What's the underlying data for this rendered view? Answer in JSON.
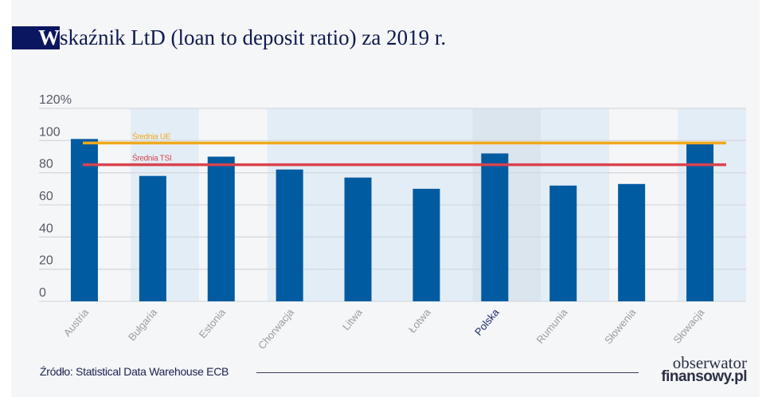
{
  "title": {
    "first_letter": "W",
    "rest": "skaźnik LtD (loan to deposit ratio) za 2019 r."
  },
  "chart_data": {
    "type": "bar",
    "title": "Wskaźnik LtD (loan to deposit ratio) za 2019 r.",
    "categories": [
      "Austria",
      "Bułgaria",
      "Estonia",
      "Chorwacja",
      "Litwa",
      "Łotwa",
      "Polska",
      "Rumunia",
      "Słowenia",
      "Słowacja"
    ],
    "values": [
      101,
      78,
      90,
      82,
      77,
      70,
      92,
      72,
      73,
      98
    ],
    "highlight_category": "Polska",
    "ylim": [
      0,
      120
    ],
    "yticks": [
      "0",
      "20",
      "40",
      "60",
      "80",
      "100",
      "120%"
    ],
    "ytick_values": [
      0,
      20,
      40,
      60,
      80,
      100,
      120
    ],
    "grid": true,
    "shaded_columns": [
      "Bułgaria",
      "Chorwacja",
      "Litwa",
      "Łotwa",
      "Polska",
      "Rumunia",
      "Słowacja"
    ],
    "reference_lines": [
      {
        "label": "Średnia UE",
        "value": 98.5,
        "color": "#f0a91c"
      },
      {
        "label": "Średnia TSI",
        "value": 85,
        "color": "#d9434e"
      }
    ],
    "colors": {
      "bar": "#005ba1",
      "grid": "#d6d9de",
      "shade": "#e3edf6",
      "shade_highlight": "#dbe5ee",
      "tick_label": "#9a9ca3",
      "highlight_label": "#1b2a6b"
    }
  },
  "footer": {
    "source": "Źródło: Statistical Data Warehouse ECB"
  },
  "logo": {
    "line1": "obserwator",
    "line2": "finansowy.pl"
  }
}
